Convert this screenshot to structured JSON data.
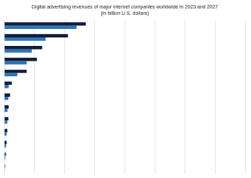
{
  "chart_data": {
    "type": "bar",
    "orientation": "horizontal",
    "title": "Digital advertising revenues of major internet companies worldwide in 2023 and 2027\n(in billion U.S. dollars)",
    "categories": [
      null,
      null,
      null,
      null,
      null,
      null,
      null,
      null,
      null,
      null,
      null,
      null,
      null
    ],
    "series": [
      {
        "colors": [
          "#0d1f3c",
          "#0d1f3c",
          "#0d1f3c",
          "#0d1f3c",
          "#0d1f3c",
          "#0d1f3c",
          "#0d1f3c",
          "#0d1f3c",
          "#0d1f3c",
          "#0d1f3c",
          "#0d1f3c",
          "#2a3f5f",
          "#6e7f96"
        ],
        "values": [
          237.0,
          185.0,
          110.0,
          95.0,
          65.0,
          22.0,
          17.0,
          13.0,
          12.0,
          9.0,
          7.0,
          5.0,
          3.5
        ]
      },
      {
        "colors": [
          "#2e75b6",
          "#2e75b6",
          "#2e75b6",
          "#2e75b6",
          "#2e75b6",
          "#2e75b6",
          "#2e75b6",
          "#2e75b6",
          "#2e75b6",
          "#2e75b6",
          "#2e75b6",
          "#5ba0d0",
          "#b0cce4"
        ],
        "values": [
          210.0,
          120.0,
          80.0,
          65.0,
          38.0,
          13.0,
          12.0,
          9.5,
          9.0,
          7.0,
          5.5,
          3.5,
          2.5
        ]
      }
    ],
    "xlim": [
      0,
      700
    ],
    "xticks": [
      0,
      87.5,
      175,
      262.5,
      350,
      437.5,
      525,
      612.5,
      700
    ],
    "grid": true,
    "tick_labels": false
  }
}
